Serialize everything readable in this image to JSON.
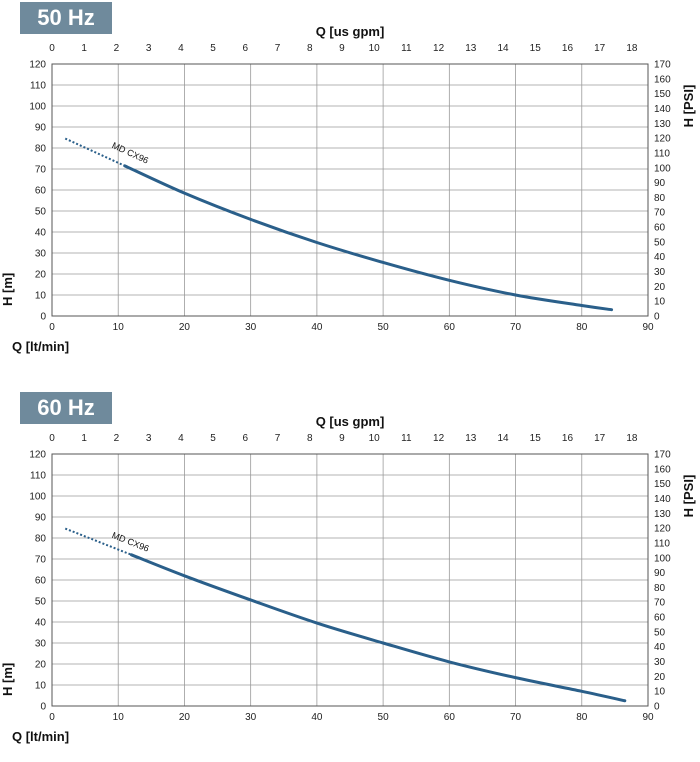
{
  "colors": {
    "badge": "#6f8a9c",
    "curve": "#2a5f8a",
    "grid": "#9a9a9a",
    "frame": "#555555"
  },
  "chart_data": [
    {
      "type": "line",
      "badge": "50 Hz",
      "xlabel": "Q [lt/min]",
      "x2label": "Q [us gpm]",
      "ylabel": "H [m]",
      "y2label": "H [PSI]",
      "xlim": [
        0,
        90
      ],
      "ylim": [
        0,
        120
      ],
      "x2lim": [
        0,
        18.5
      ],
      "y2lim": [
        0,
        170
      ],
      "x_ticks": [
        0,
        10,
        20,
        30,
        40,
        50,
        60,
        70,
        80,
        90
      ],
      "y_ticks": [
        0,
        10,
        20,
        30,
        40,
        50,
        60,
        70,
        80,
        90,
        100,
        110,
        120
      ],
      "x2_ticks": [
        0,
        1,
        2,
        3,
        4,
        5,
        6,
        7,
        8,
        9,
        10,
        11,
        12,
        13,
        14,
        15,
        16,
        17,
        18
      ],
      "y2_ticks": [
        0,
        10,
        20,
        30,
        40,
        50,
        60,
        70,
        80,
        90,
        100,
        110,
        120,
        130,
        140,
        150,
        160,
        170
      ],
      "grid": true,
      "series": [
        {
          "name": "MD CX96",
          "dotted": {
            "x": [
              2,
              11
            ],
            "y": [
              84.5,
              71.5
            ]
          },
          "x": [
            11,
            20,
            30,
            40,
            50,
            60,
            70,
            80,
            84.5
          ],
          "y": [
            71.5,
            58.5,
            46,
            35,
            25.5,
            17,
            10,
            5,
            3
          ]
        }
      ]
    },
    {
      "type": "line",
      "badge": "60 Hz",
      "xlabel": "Q [lt/min]",
      "x2label": "Q [us gpm]",
      "ylabel": "H [m]",
      "y2label": "H [PSI]",
      "xlim": [
        0,
        90
      ],
      "ylim": [
        0,
        120
      ],
      "x2lim": [
        0,
        18.5
      ],
      "y2lim": [
        0,
        170
      ],
      "x_ticks": [
        0,
        10,
        20,
        30,
        40,
        50,
        60,
        70,
        80,
        90
      ],
      "y_ticks": [
        0,
        10,
        20,
        30,
        40,
        50,
        60,
        70,
        80,
        90,
        100,
        110,
        120
      ],
      "x2_ticks": [
        0,
        1,
        2,
        3,
        4,
        5,
        6,
        7,
        8,
        9,
        10,
        11,
        12,
        13,
        14,
        15,
        16,
        17,
        18
      ],
      "y2_ticks": [
        0,
        10,
        20,
        30,
        40,
        50,
        60,
        70,
        80,
        90,
        100,
        110,
        120,
        130,
        140,
        150,
        160,
        170
      ],
      "grid": true,
      "series": [
        {
          "name": "MD CX96",
          "dotted": {
            "x": [
              2,
              12
            ],
            "y": [
              84.5,
              72
            ]
          },
          "x": [
            12,
            20,
            30,
            40,
            50,
            60,
            70,
            80,
            86.5
          ],
          "y": [
            72,
            62,
            50.5,
            39.5,
            30,
            21,
            13.5,
            7,
            2.5
          ]
        }
      ]
    }
  ]
}
